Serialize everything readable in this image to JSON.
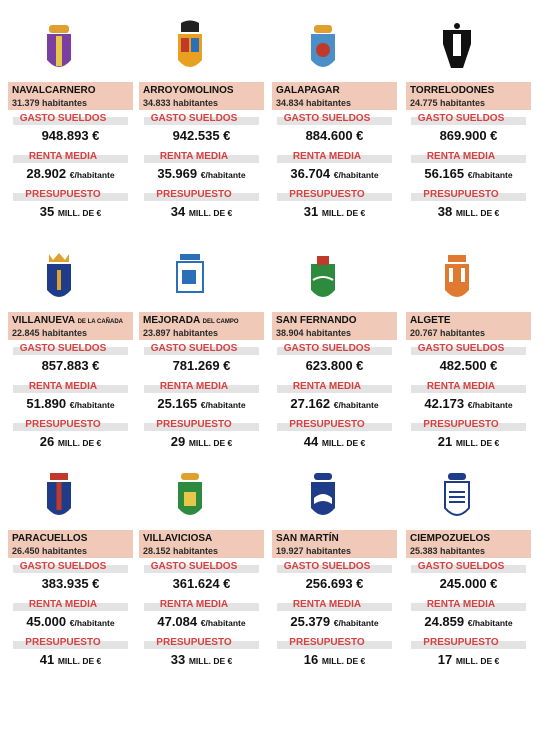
{
  "labels": {
    "gasto": "GASTO SUELDOS",
    "renta": "RENTA MEDIA",
    "presupuesto": "PRESUPUESTO",
    "renta_unit": "€/habitante",
    "presupuesto_unit": "MILL. DE €"
  },
  "colors": {
    "name_box": "#f0c9b8",
    "label_red": "#d84040",
    "label_bar": "#e3e3e3"
  },
  "municipalities": [
    {
      "name": "NAVALCARNERO",
      "name_suffix": "",
      "habitantes": "31.379 habitantes",
      "gasto": "948.893 €",
      "renta": "28.902",
      "presupuesto": "35",
      "crest_icon": "navalcarnero-crest-icon"
    },
    {
      "name": "ARROYOMOLINOS",
      "name_suffix": "",
      "habitantes": "34.833 habitantes",
      "gasto": "942.535 €",
      "renta": "35.969",
      "presupuesto": "34",
      "crest_icon": "arroyomolinos-crest-icon"
    },
    {
      "name": "GALAPAGAR",
      "name_suffix": "",
      "habitantes": "34.834 habitantes",
      "gasto": "884.600 €",
      "renta": "36.704",
      "presupuesto": "31",
      "crest_icon": "galapagar-crest-icon"
    },
    {
      "name": "TORRELODONES",
      "name_suffix": "",
      "habitantes": "24.775 habitantes",
      "gasto": "869.900 €",
      "renta": "56.165",
      "presupuesto": "38",
      "crest_icon": "torrelodones-crest-icon"
    },
    {
      "name": "VILLANUEVA",
      "name_suffix": "DE LA CAÑADA",
      "habitantes": "22.845 habitantes",
      "gasto": "857.883 €",
      "renta": "51.890",
      "presupuesto": "26",
      "crest_icon": "villanueva-crest-icon"
    },
    {
      "name": "MEJORADA",
      "name_suffix": "DEL CAMPO",
      "habitantes": "23.897 habitantes",
      "gasto": "781.269 €",
      "renta": "25.165",
      "presupuesto": "29",
      "crest_icon": "mejorada-crest-icon"
    },
    {
      "name": "SAN FERNANDO",
      "name_suffix": "",
      "habitantes": "38.904 habitantes",
      "gasto": "623.800 €",
      "renta": "27.162",
      "presupuesto": "44",
      "crest_icon": "san-fernando-crest-icon"
    },
    {
      "name": "ALGETE",
      "name_suffix": "",
      "habitantes": "20.767 habitantes",
      "gasto": "482.500 €",
      "renta": "42.173",
      "presupuesto": "21",
      "crest_icon": "algete-crest-icon"
    },
    {
      "name": "PARACUELLOS",
      "name_suffix": "",
      "habitantes": "26.450 habitantes",
      "gasto": "383.935 €",
      "renta": "45.000",
      "presupuesto": "41",
      "crest_icon": "paracuellos-crest-icon"
    },
    {
      "name": "VILLAVICIOSA",
      "name_suffix": "",
      "habitantes": "28.152 habitantes",
      "gasto": "361.624 €",
      "renta": "47.084",
      "presupuesto": "33",
      "crest_icon": "villaviciosa-crest-icon"
    },
    {
      "name": "SAN MARTÍN",
      "name_suffix": "",
      "habitantes": "19.927 habitantes",
      "gasto": "256.693 €",
      "renta": "25.379",
      "presupuesto": "16",
      "crest_icon": "san-martin-crest-icon"
    },
    {
      "name": "CIEMPOZUELOS",
      "name_suffix": "",
      "habitantes": "25.383 habitantes",
      "gasto": "245.000 €",
      "renta": "24.859",
      "presupuesto": "17",
      "crest_icon": "ciempozuelos-crest-icon"
    }
  ]
}
